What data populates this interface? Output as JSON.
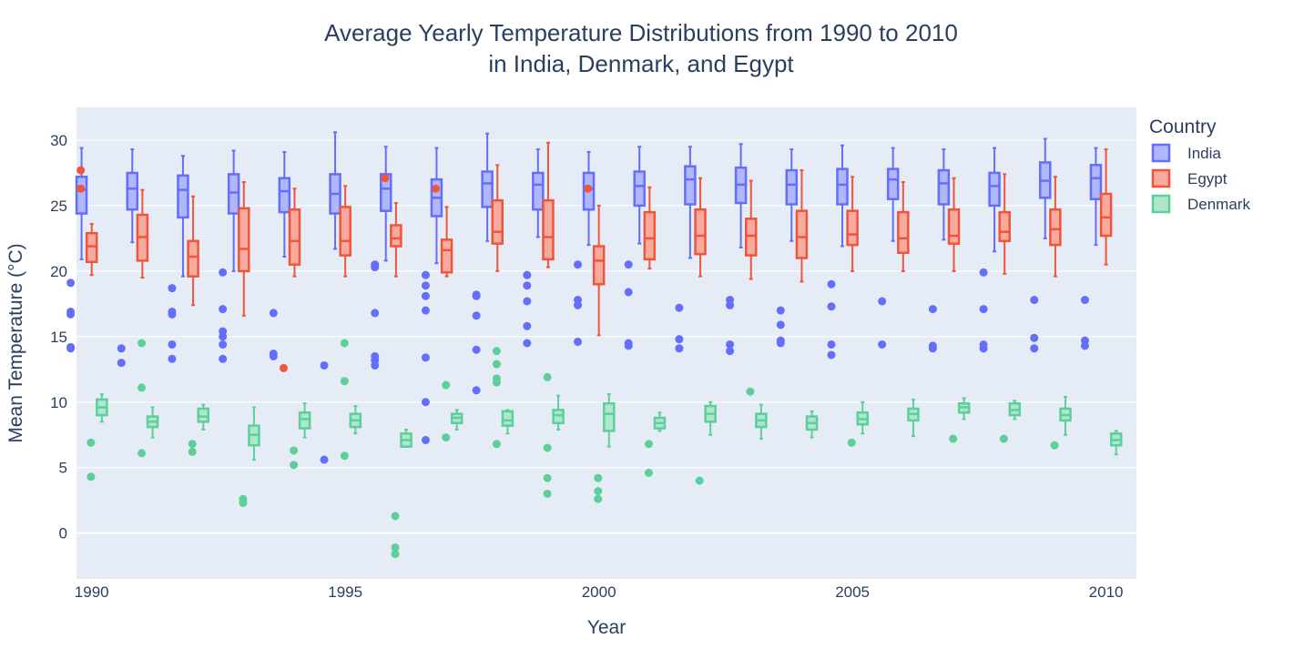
{
  "chart_data": {
    "type": "box",
    "title": "Average Yearly Temperature Distributions from 1990 to 2010",
    "subtitle": "in India, Denmark, and Egypt",
    "xlabel": "Year",
    "ylabel": "Mean Temperature (°C)",
    "xlim": [
      1989.7,
      2010.6
    ],
    "ylim": [
      -3.5,
      32.5
    ],
    "x_ticks": [
      1990,
      1995,
      2000,
      2005,
      2010
    ],
    "y_ticks": [
      0,
      5,
      10,
      15,
      20,
      25,
      30
    ],
    "grid": true,
    "legend_position": "right",
    "legend_title": "Country",
    "series": [
      {
        "name": "India",
        "color": "#636efa",
        "fill": "#b0b6fc",
        "offset": -0.2,
        "boxes": [
          {
            "year": 1990,
            "lower": 20.9,
            "q1": 24.4,
            "median": 26.2,
            "q3": 27.2,
            "upper": 29.4,
            "outliers": [
              19.1,
              16.9,
              16.7,
              14.2,
              14.1
            ]
          },
          {
            "year": 1991,
            "lower": 22.2,
            "q1": 24.7,
            "median": 26.3,
            "q3": 27.5,
            "upper": 29.3,
            "outliers": [
              14.1,
              13.0
            ]
          },
          {
            "year": 1992,
            "lower": 19.6,
            "q1": 24.1,
            "median": 26.2,
            "q3": 27.3,
            "upper": 28.8,
            "outliers": [
              18.7,
              16.9,
              16.7,
              14.4,
              13.3
            ]
          },
          {
            "year": 1993,
            "lower": 20.0,
            "q1": 24.4,
            "median": 26.0,
            "q3": 27.4,
            "upper": 29.2,
            "outliers": [
              19.9,
              17.1,
              15.4,
              15.0,
              14.4,
              13.3
            ]
          },
          {
            "year": 1994,
            "lower": 21.1,
            "q1": 24.5,
            "median": 26.1,
            "q3": 27.1,
            "upper": 29.1,
            "outliers": [
              16.8,
              13.7,
              13.5
            ]
          },
          {
            "year": 1995,
            "lower": 21.7,
            "q1": 24.4,
            "median": 25.9,
            "q3": 27.4,
            "upper": 30.6,
            "outliers": [
              12.8,
              5.6
            ]
          },
          {
            "year": 1996,
            "lower": 20.8,
            "q1": 24.6,
            "median": 26.3,
            "q3": 27.4,
            "upper": 29.5,
            "outliers": [
              20.5,
              20.3,
              16.8,
              13.5,
              13.2,
              12.8
            ]
          },
          {
            "year": 1997,
            "lower": 20.6,
            "q1": 24.2,
            "median": 25.6,
            "q3": 27.0,
            "upper": 29.4,
            "outliers": [
              19.7,
              18.9,
              18.1,
              17.0,
              13.4,
              10.0,
              7.1
            ]
          },
          {
            "year": 1998,
            "lower": 22.3,
            "q1": 24.9,
            "median": 26.7,
            "q3": 27.6,
            "upper": 30.5,
            "outliers": [
              18.2,
              18.1,
              16.6,
              14.0,
              10.9
            ]
          },
          {
            "year": 1999,
            "lower": 22.6,
            "q1": 24.7,
            "median": 26.6,
            "q3": 27.5,
            "upper": 29.3,
            "outliers": [
              19.7,
              18.9,
              17.7,
              15.8,
              14.5
            ]
          },
          {
            "year": 2000,
            "lower": 22.0,
            "q1": 24.7,
            "median": 26.3,
            "q3": 27.5,
            "upper": 29.1,
            "outliers": [
              20.5,
              17.8,
              17.4,
              14.6
            ]
          },
          {
            "year": 2001,
            "lower": 22.1,
            "q1": 25.0,
            "median": 26.5,
            "q3": 27.6,
            "upper": 29.5,
            "outliers": [
              20.5,
              18.4,
              14.5,
              14.3
            ]
          },
          {
            "year": 2002,
            "lower": 21.0,
            "q1": 25.1,
            "median": 27.0,
            "q3": 28.0,
            "upper": 29.5,
            "outliers": [
              17.2,
              14.8,
              14.1
            ]
          },
          {
            "year": 2003,
            "lower": 21.8,
            "q1": 25.2,
            "median": 26.6,
            "q3": 27.9,
            "upper": 29.7,
            "outliers": [
              17.8,
              17.4,
              14.4,
              13.9
            ]
          },
          {
            "year": 2004,
            "lower": 22.3,
            "q1": 25.1,
            "median": 26.6,
            "q3": 27.7,
            "upper": 29.3,
            "outliers": [
              17.0,
              15.9,
              14.7,
              14.5
            ]
          },
          {
            "year": 2005,
            "lower": 21.9,
            "q1": 25.1,
            "median": 26.6,
            "q3": 27.8,
            "upper": 29.6,
            "outliers": [
              19.0,
              17.3,
              14.4,
              13.6
            ]
          },
          {
            "year": 2006,
            "lower": 22.3,
            "q1": 25.5,
            "median": 27.0,
            "q3": 27.8,
            "upper": 29.4,
            "outliers": [
              17.7,
              14.4
            ]
          },
          {
            "year": 2007,
            "lower": 22.4,
            "q1": 25.1,
            "median": 26.7,
            "q3": 27.7,
            "upper": 29.3,
            "outliers": [
              17.1,
              14.3,
              14.1
            ]
          },
          {
            "year": 2008,
            "lower": 21.5,
            "q1": 25.0,
            "median": 26.5,
            "q3": 27.5,
            "upper": 29.4,
            "outliers": [
              19.9,
              17.1,
              14.4,
              14.1
            ]
          },
          {
            "year": 2009,
            "lower": 22.5,
            "q1": 25.6,
            "median": 26.9,
            "q3": 28.3,
            "upper": 30.1,
            "outliers": [
              17.8,
              14.9,
              14.1
            ]
          },
          {
            "year": 2010,
            "lower": 22.0,
            "q1": 25.5,
            "median": 27.1,
            "q3": 28.1,
            "upper": 29.4,
            "outliers": [
              17.8,
              14.7,
              14.3
            ]
          }
        ]
      },
      {
        "name": "Egypt",
        "color": "#ef553b",
        "fill": "#f7aa9d",
        "offset": 0,
        "boxes": [
          {
            "year": 1990,
            "lower": 19.7,
            "q1": 20.7,
            "median": 21.9,
            "q3": 22.9,
            "upper": 23.6,
            "outliers": [
              27.7,
              26.3
            ]
          },
          {
            "year": 1991,
            "lower": 19.5,
            "q1": 20.8,
            "median": 22.6,
            "q3": 24.3,
            "upper": 26.2,
            "outliers": []
          },
          {
            "year": 1992,
            "lower": 17.4,
            "q1": 19.6,
            "median": 21.1,
            "q3": 22.3,
            "upper": 25.7,
            "outliers": []
          },
          {
            "year": 1993,
            "lower": 16.6,
            "q1": 20.0,
            "median": 21.7,
            "q3": 24.8,
            "upper": 26.8,
            "outliers": []
          },
          {
            "year": 1994,
            "lower": 19.6,
            "q1": 20.5,
            "median": 22.3,
            "q3": 24.7,
            "upper": 26.3,
            "outliers": [
              12.6
            ]
          },
          {
            "year": 1995,
            "lower": 19.6,
            "q1": 21.2,
            "median": 22.3,
            "q3": 24.9,
            "upper": 26.5,
            "outliers": []
          },
          {
            "year": 1996,
            "lower": 19.6,
            "q1": 21.9,
            "median": 22.5,
            "q3": 23.5,
            "upper": 25.2,
            "outliers": [
              27.1
            ]
          },
          {
            "year": 1997,
            "lower": 19.6,
            "q1": 19.9,
            "median": 21.6,
            "q3": 22.4,
            "upper": 24.9,
            "outliers": [
              26.3
            ]
          },
          {
            "year": 1998,
            "lower": 20.0,
            "q1": 22.1,
            "median": 23.0,
            "q3": 25.4,
            "upper": 28.1,
            "outliers": []
          },
          {
            "year": 1999,
            "lower": 20.3,
            "q1": 20.9,
            "median": 22.6,
            "q3": 25.4,
            "upper": 29.8,
            "outliers": []
          },
          {
            "year": 2000,
            "lower": 15.1,
            "q1": 19.0,
            "median": 20.8,
            "q3": 21.9,
            "upper": 25.0,
            "outliers": [
              26.3
            ]
          },
          {
            "year": 2001,
            "lower": 20.2,
            "q1": 20.9,
            "median": 22.5,
            "q3": 24.5,
            "upper": 26.4,
            "outliers": []
          },
          {
            "year": 2002,
            "lower": 19.6,
            "q1": 21.3,
            "median": 22.7,
            "q3": 24.7,
            "upper": 27.1,
            "outliers": []
          },
          {
            "year": 2003,
            "lower": 19.4,
            "q1": 21.2,
            "median": 22.7,
            "q3": 24.0,
            "upper": 26.9,
            "outliers": []
          },
          {
            "year": 2004,
            "lower": 19.2,
            "q1": 21.0,
            "median": 22.6,
            "q3": 24.6,
            "upper": 27.7,
            "outliers": []
          },
          {
            "year": 2005,
            "lower": 20.0,
            "q1": 22.0,
            "median": 22.8,
            "q3": 24.6,
            "upper": 27.2,
            "outliers": []
          },
          {
            "year": 2006,
            "lower": 20.0,
            "q1": 21.4,
            "median": 22.5,
            "q3": 24.5,
            "upper": 26.8,
            "outliers": []
          },
          {
            "year": 2007,
            "lower": 20.0,
            "q1": 22.1,
            "median": 22.7,
            "q3": 24.7,
            "upper": 27.1,
            "outliers": []
          },
          {
            "year": 2008,
            "lower": 19.8,
            "q1": 22.3,
            "median": 23.0,
            "q3": 24.5,
            "upper": 27.4,
            "outliers": []
          },
          {
            "year": 2009,
            "lower": 19.6,
            "q1": 22.0,
            "median": 23.2,
            "q3": 24.7,
            "upper": 27.2,
            "outliers": []
          },
          {
            "year": 2010,
            "lower": 20.5,
            "q1": 22.7,
            "median": 24.1,
            "q3": 25.9,
            "upper": 29.3,
            "outliers": []
          }
        ]
      },
      {
        "name": "Denmark",
        "color": "#5ccf9a",
        "fill": "#aee7cc",
        "offset": 0.2,
        "boxes": [
          {
            "year": 1990,
            "lower": 8.5,
            "q1": 9.0,
            "median": 9.6,
            "q3": 10.2,
            "upper": 10.6,
            "outliers": [
              6.9,
              4.3
            ]
          },
          {
            "year": 1991,
            "lower": 7.3,
            "q1": 8.1,
            "median": 8.5,
            "q3": 8.9,
            "upper": 9.6,
            "outliers": [
              14.5,
              11.1,
              6.1
            ]
          },
          {
            "year": 1992,
            "lower": 7.9,
            "q1": 8.5,
            "median": 8.9,
            "q3": 9.5,
            "upper": 9.8,
            "outliers": [
              6.8,
              6.2
            ]
          },
          {
            "year": 1993,
            "lower": 5.6,
            "q1": 6.7,
            "median": 7.5,
            "q3": 8.2,
            "upper": 9.6,
            "outliers": [
              2.6,
              2.3
            ]
          },
          {
            "year": 1994,
            "lower": 7.3,
            "q1": 8.0,
            "median": 8.7,
            "q3": 9.2,
            "upper": 9.9,
            "outliers": [
              6.3,
              5.2
            ]
          },
          {
            "year": 1995,
            "lower": 7.6,
            "q1": 8.1,
            "median": 8.6,
            "q3": 9.1,
            "upper": 9.7,
            "outliers": [
              14.5,
              11.6,
              5.9
            ]
          },
          {
            "year": 1996,
            "lower": 6.6,
            "q1": 6.6,
            "median": 7.1,
            "q3": 7.6,
            "upper": 7.9,
            "outliers": [
              1.3,
              -1.1,
              -1.6
            ]
          },
          {
            "year": 1997,
            "lower": 7.9,
            "q1": 8.4,
            "median": 8.8,
            "q3": 9.1,
            "upper": 9.4,
            "outliers": [
              11.3,
              7.3
            ]
          },
          {
            "year": 1998,
            "lower": 7.6,
            "q1": 8.2,
            "median": 8.6,
            "q3": 9.3,
            "upper": 9.4,
            "outliers": [
              13.9,
              12.9,
              11.8,
              11.5,
              6.8
            ]
          },
          {
            "year": 1999,
            "lower": 7.9,
            "q1": 8.4,
            "median": 9.0,
            "q3": 9.4,
            "upper": 10.5,
            "outliers": [
              11.9,
              6.5,
              4.2,
              3.0
            ]
          },
          {
            "year": 2000,
            "lower": 6.6,
            "q1": 7.8,
            "median": 9.1,
            "q3": 9.9,
            "upper": 10.6,
            "outliers": [
              4.2,
              3.2,
              2.6
            ]
          },
          {
            "year": 2001,
            "lower": 7.8,
            "q1": 8.0,
            "median": 8.4,
            "q3": 8.8,
            "upper": 9.2,
            "outliers": [
              6.8,
              4.6
            ]
          },
          {
            "year": 2002,
            "lower": 7.5,
            "q1": 8.5,
            "median": 9.1,
            "q3": 9.7,
            "upper": 10.0,
            "outliers": [
              4.0
            ]
          },
          {
            "year": 2003,
            "lower": 7.2,
            "q1": 8.1,
            "median": 8.6,
            "q3": 9.1,
            "upper": 9.8,
            "outliers": [
              10.8
            ]
          },
          {
            "year": 2004,
            "lower": 7.3,
            "q1": 7.9,
            "median": 8.4,
            "q3": 8.9,
            "upper": 9.3,
            "outliers": []
          },
          {
            "year": 2005,
            "lower": 7.6,
            "q1": 8.3,
            "median": 8.7,
            "q3": 9.2,
            "upper": 10.0,
            "outliers": [
              6.9
            ]
          },
          {
            "year": 2006,
            "lower": 7.4,
            "q1": 8.6,
            "median": 9.1,
            "q3": 9.5,
            "upper": 10.2,
            "outliers": []
          },
          {
            "year": 2007,
            "lower": 8.7,
            "q1": 9.2,
            "median": 9.6,
            "q3": 9.9,
            "upper": 10.3,
            "outliers": [
              7.2
            ]
          },
          {
            "year": 2008,
            "lower": 8.7,
            "q1": 9.0,
            "median": 9.4,
            "q3": 9.9,
            "upper": 10.1,
            "outliers": [
              7.2
            ]
          },
          {
            "year": 2009,
            "lower": 7.5,
            "q1": 8.6,
            "median": 9.0,
            "q3": 9.5,
            "upper": 10.4,
            "outliers": [
              6.7
            ]
          },
          {
            "year": 2010,
            "lower": 6.0,
            "q1": 6.7,
            "median": 7.1,
            "q3": 7.6,
            "upper": 7.8,
            "outliers": []
          }
        ]
      }
    ]
  },
  "colors": {
    "plot_background": "#e5ecf6",
    "grid": "#ffffff",
    "text": "#2a3f5f"
  }
}
